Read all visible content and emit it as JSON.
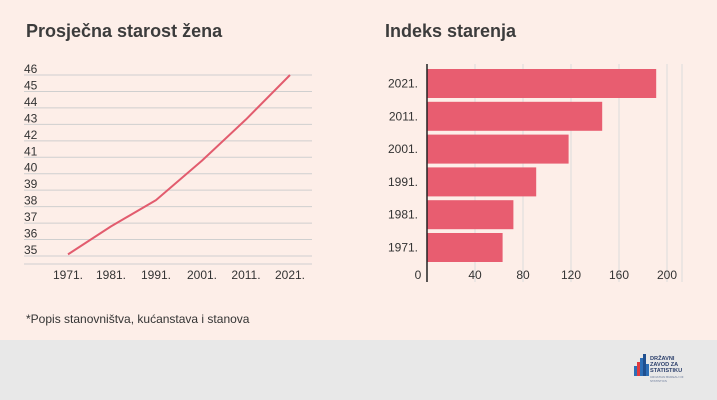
{
  "chart_data": [
    {
      "type": "line",
      "title": "Prosječna starost žena",
      "x": [
        "1971.",
        "1981.",
        "1991.",
        "2001.",
        "2011.",
        "2021."
      ],
      "yticks": [
        "35",
        "36",
        "37",
        "38",
        "39",
        "40",
        "41",
        "42",
        "43",
        "44",
        "45",
        "46"
      ],
      "ylim": [
        35,
        46
      ],
      "series": [
        {
          "values": [
            35.1,
            36.8,
            38.4,
            40.8,
            43.3,
            46.0
          ]
        }
      ],
      "color": "#e25c6e",
      "grid": true
    },
    {
      "type": "bar",
      "orientation": "horizontal",
      "title": "Indeks starenja",
      "categories": [
        "2021.",
        "2011.",
        "2001.",
        "1991.",
        "1981.",
        "1971."
      ],
      "values": [
        191,
        146,
        118,
        91,
        72,
        63
      ],
      "xticks": [
        "0",
        "40",
        "80",
        "120",
        "160",
        "200"
      ],
      "xlim": [
        0,
        200
      ],
      "color": "#e85d70",
      "grid": true
    }
  ],
  "footnote": "*Popis stanovništva, kućanstava i stanova",
  "logo": {
    "lines": [
      "DRŽAVNI",
      "ZAVOD ZA",
      "STATISTIKU"
    ],
    "sub": "CROATIAN BUREAU OF STATISTICS",
    "colors": [
      "#2d6fb7",
      "#e03a3e",
      "#2d6fb7",
      "#1f4f8f",
      "#2d6fb7"
    ]
  }
}
